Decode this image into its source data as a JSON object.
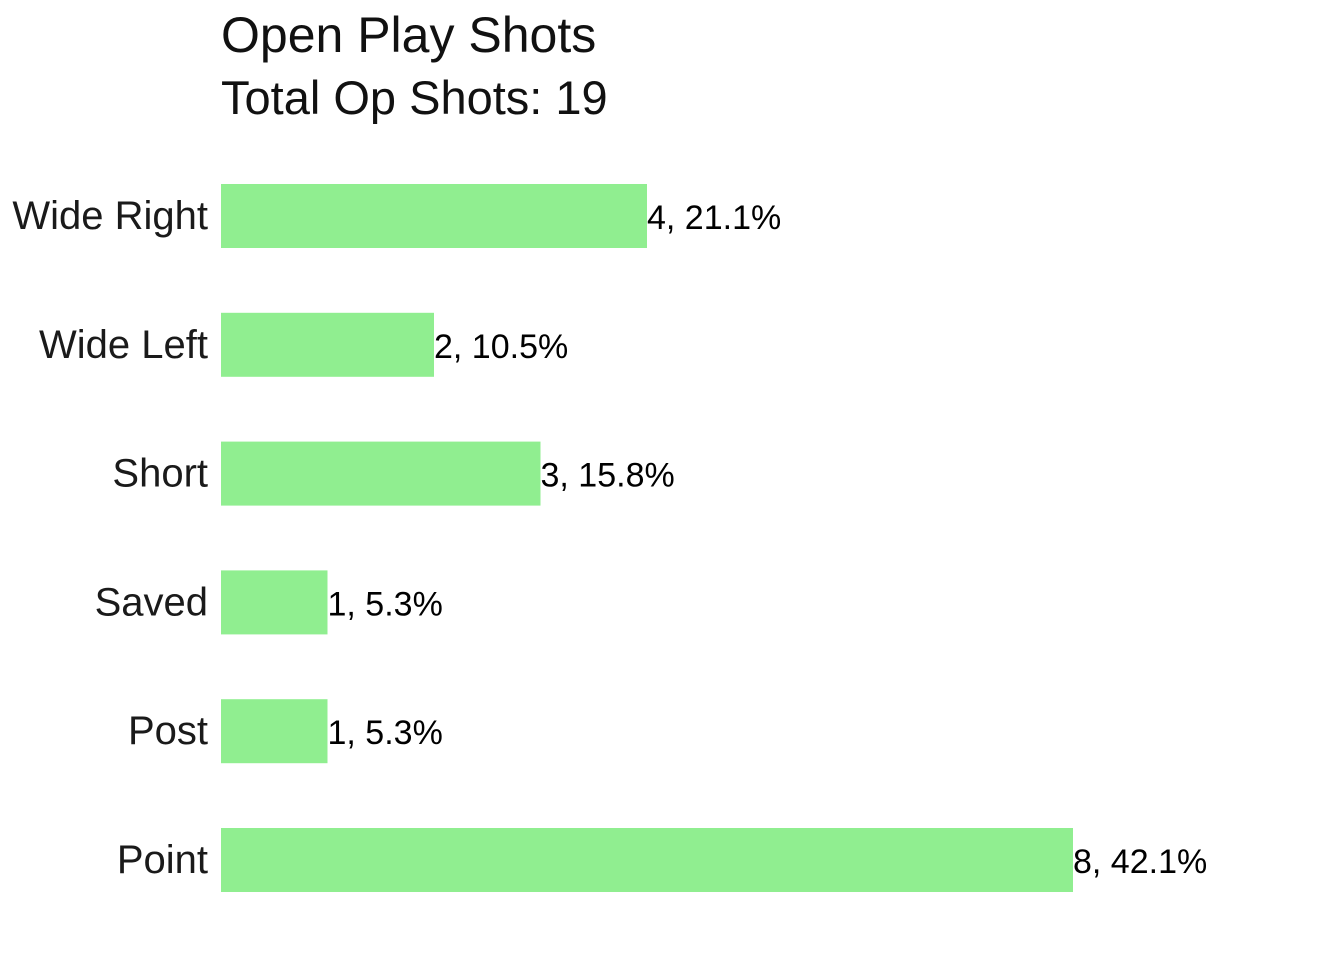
{
  "chart_data": {
    "type": "bar",
    "orientation": "horizontal",
    "title": "Open Play Shots",
    "subtitle": "Total Op Shots: 19",
    "categories": [
      "Wide Right",
      "Wide Left",
      "Short",
      "Saved",
      "Post",
      "Point"
    ],
    "values": [
      4,
      2,
      3,
      1,
      1,
      8
    ],
    "data_labels": [
      "4, 21.1%",
      "2, 10.5%",
      "3, 15.8%",
      "1, 5.3%",
      "1, 5.3%",
      "8, 42.1%"
    ],
    "xlim": [
      0,
      8
    ],
    "grid": false,
    "axes_visible": false,
    "colors": {
      "bar": "#90ee90",
      "text": "#1a1a1a"
    }
  }
}
